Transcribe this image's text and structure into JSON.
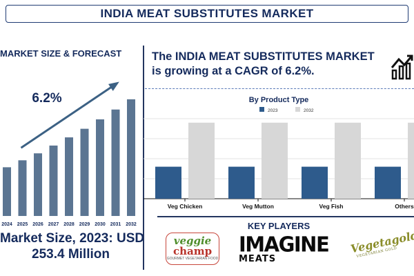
{
  "title": "INDIA MEAT SUBSTITUTES MARKET",
  "left": {
    "title": "MARKET SIZE & FORECAST",
    "market_size_line1": "Market Size, 2023: USD",
    "market_size_line2": "253.4 Million"
  },
  "headline": "The INDIA MEAT SUBSTITUTES MARKET is growing at a CAGR of 6.2%.",
  "key_players": {
    "title": "KEY PLAYERS",
    "logo_1_line1": "veggie",
    "logo_1_line2": "champ",
    "logo_1_line3": "GOURMET VEGETARIAN FOOD",
    "logo_2_line1": "IMAGINE",
    "logo_2_line2": "MEATS",
    "logo_3_line1": "Vegetagold",
    "logo_3_line2": "VEGETARIAN GOLD"
  },
  "colors": {
    "navy": "#142a5c",
    "bar_steel": "#5b7592",
    "bar_2023": "#2e5b8c",
    "bar_2032": "#d7d7d7",
    "arrow": "#3c6184"
  },
  "chart_data": [
    {
      "type": "bar",
      "title": "MARKET SIZE & FORECAST",
      "categories": [
        "2024",
        "2025",
        "2026",
        "2027",
        "2028",
        "2029",
        "2030",
        "2031",
        "2032"
      ],
      "values": [
        269,
        286,
        303,
        322,
        342,
        363,
        386,
        410,
        435
      ],
      "annotation": "6.2%",
      "ylim": [
        150,
        450
      ],
      "grid": false,
      "legend": "none"
    },
    {
      "type": "bar",
      "title": "By Product Type",
      "categories": [
        "Veg Chicken",
        "Veg Mutton",
        "Veg Fish",
        "Others"
      ],
      "series": [
        {
          "name": "2023",
          "values": [
            40,
            40,
            40,
            40
          ]
        },
        {
          "name": "2032",
          "values": [
            95,
            95,
            95,
            95
          ]
        }
      ],
      "ylim": [
        0,
        100
      ],
      "grid": true,
      "legend": "top-center"
    }
  ]
}
